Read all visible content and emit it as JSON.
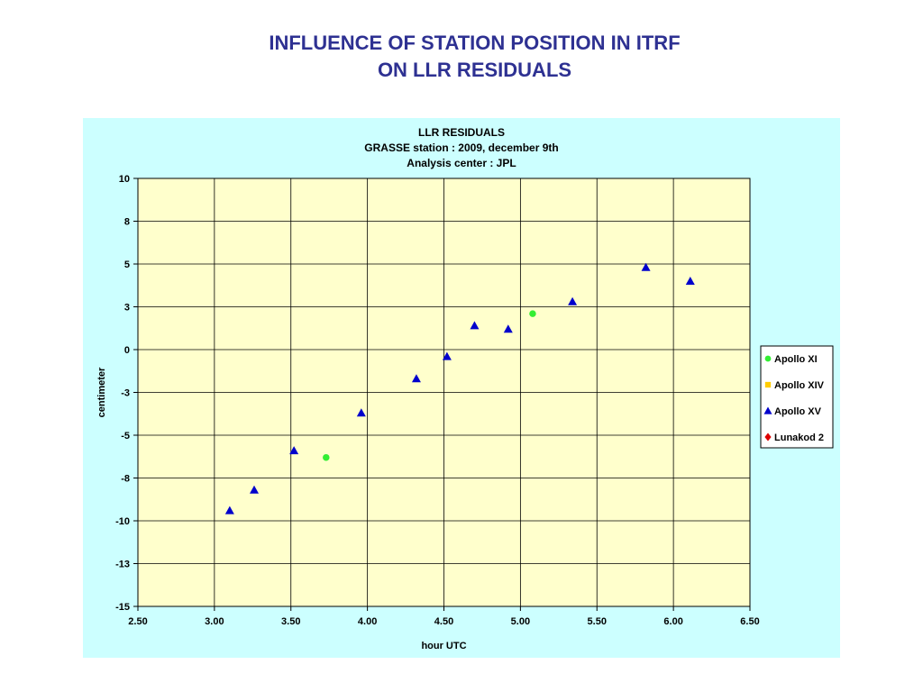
{
  "slide": {
    "title_line1": "INFLUENCE OF STATION POSITION IN ITRF",
    "title_line2": "ON LLR RESIDUALS"
  },
  "chart_data": {
    "type": "scatter",
    "title": [
      "LLR RESIDUALS",
      "GRASSE station : 2009, december 9th",
      "Analysis center : JPL"
    ],
    "xlabel": "hour UTC",
    "ylabel": "centimeter",
    "xlim": [
      2.5,
      6.5
    ],
    "ylim": [
      -15,
      10
    ],
    "xticks": [
      2.5,
      3.0,
      3.5,
      4.0,
      4.5,
      5.0,
      5.5,
      6.0,
      6.5
    ],
    "xtick_labels": [
      "2.50",
      "3.00",
      "3.50",
      "4.00",
      "4.50",
      "5.00",
      "5.50",
      "6.00",
      "6.50"
    ],
    "yticks": [
      10,
      7.5,
      5,
      2.5,
      0,
      -2.5,
      -5,
      -7.5,
      -10,
      -12.5,
      -15
    ],
    "ytick_labels": [
      "10",
      "8",
      "5",
      "3",
      "0",
      "-3",
      "-5",
      "-8",
      "-10",
      "-13",
      "-15"
    ],
    "grid": true,
    "legend_position": "right",
    "series": [
      {
        "name": "Apollo XI",
        "marker": "circle",
        "color": "#33ee33",
        "points": [
          [
            3.73,
            -6.3
          ],
          [
            5.08,
            2.1
          ]
        ]
      },
      {
        "name": "Apollo XIV",
        "marker": "square",
        "color": "#ffcc00",
        "points": []
      },
      {
        "name": "Apollo XV",
        "marker": "triangle",
        "color": "#0000cc",
        "points": [
          [
            3.1,
            -9.4
          ],
          [
            3.26,
            -8.2
          ],
          [
            3.52,
            -5.9
          ],
          [
            3.96,
            -3.7
          ],
          [
            4.32,
            -1.7
          ],
          [
            4.52,
            -0.4
          ],
          [
            4.7,
            1.4
          ],
          [
            4.92,
            1.2
          ],
          [
            5.34,
            2.8
          ],
          [
            5.82,
            4.8
          ],
          [
            6.11,
            4.0
          ]
        ]
      },
      {
        "name": "Lunakod 2",
        "marker": "diamond",
        "color": "#dd0000",
        "points": []
      }
    ]
  }
}
